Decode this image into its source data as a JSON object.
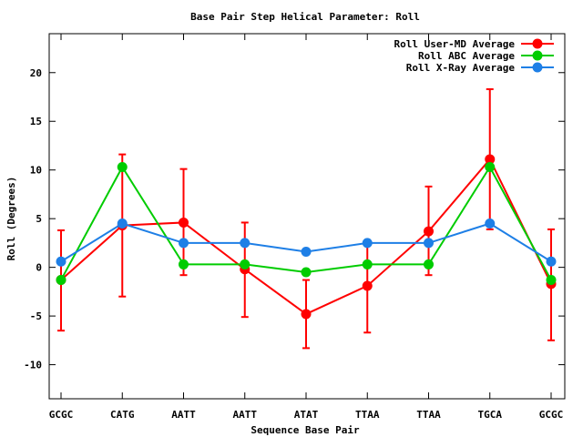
{
  "chart_data": {
    "type": "line",
    "title": "Base Pair Step Helical Parameter: Roll",
    "xlabel": "Sequence Base Pair",
    "ylabel": "Roll (Degrees)",
    "categories": [
      "GCGC",
      "CATG",
      "AATT",
      "AATT",
      "ATAT",
      "TTAA",
      "TTAA",
      "TGCA",
      "GCGC"
    ],
    "ylim": [
      -13.5,
      24
    ],
    "yticks": [
      -10,
      -5,
      0,
      5,
      10,
      15,
      20
    ],
    "grid": false,
    "legend_position": "top-right",
    "series": [
      {
        "name": "Roll User-MD Average",
        "color": "#ff0000",
        "values": [
          -1.3,
          4.3,
          4.6,
          -0.2,
          -4.8,
          -1.9,
          3.7,
          11.1,
          -1.7
        ],
        "error_low": [
          -6.5,
          -3.0,
          -0.8,
          -5.1,
          -8.3,
          -6.7,
          -0.8,
          3.9,
          -7.5
        ],
        "error_high": [
          3.8,
          11.6,
          10.1,
          4.6,
          -1.3,
          2.5,
          8.3,
          18.3,
          3.9
        ]
      },
      {
        "name": "Roll ABC Average",
        "color": "#00cc00",
        "values": [
          -1.3,
          10.3,
          0.3,
          0.3,
          -0.5,
          0.3,
          0.3,
          10.3,
          -1.3
        ]
      },
      {
        "name": "Roll X-Ray Average",
        "color": "#1e7fe6",
        "values": [
          0.6,
          4.5,
          2.5,
          2.5,
          1.6,
          2.5,
          2.5,
          4.5,
          0.6
        ]
      }
    ]
  }
}
